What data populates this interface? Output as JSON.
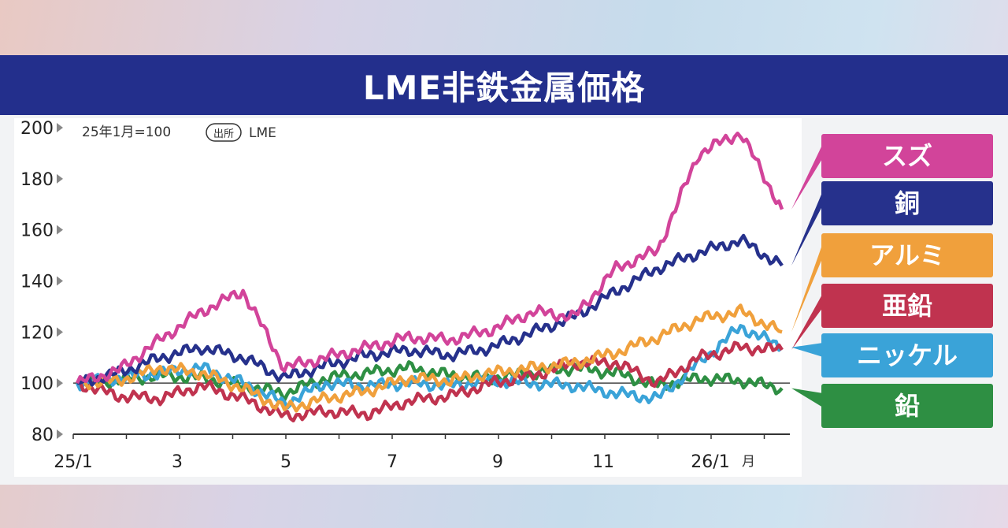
{
  "chart_data": {
    "type": "line",
    "title": "LME非鉄金属価格",
    "base_note": "25年1月=100",
    "source_badge": "出所",
    "source": "LME",
    "ylim": [
      80,
      200
    ],
    "y_ticks": [
      "200",
      "180",
      "160",
      "140",
      "120",
      "100",
      "80"
    ],
    "x_ticks": [
      "25/1",
      "3",
      "5",
      "7",
      "9",
      "11",
      "26/1"
    ],
    "x_tick_suffix": "月",
    "reference_line": 100,
    "x": [
      "2025-01",
      "2025-02",
      "2025-03",
      "2025-03b",
      "2025-04",
      "2025-04b",
      "2025-05",
      "2025-06",
      "2025-07",
      "2025-08",
      "2025-09",
      "2025-10",
      "2025-11",
      "2025-12",
      "2025-12b",
      "2026-01",
      "2026-01b",
      "2026-02"
    ],
    "series": [
      {
        "name": "スズ",
        "color": "#d2449a",
        "values": [
          100,
          105,
          117,
          128,
          136,
          106,
          110,
          114,
          118,
          117,
          121,
          128,
          126,
          145,
          152,
          190,
          198,
          168
        ]
      },
      {
        "name": "銅",
        "color": "#26318c",
        "values": [
          100,
          104,
          110,
          114,
          110,
          102,
          107,
          111,
          113,
          111,
          114,
          120,
          126,
          136,
          145,
          151,
          156,
          146
        ]
      },
      {
        "name": "アルミ",
        "color": "#f0a03c",
        "values": [
          100,
          101,
          106,
          104,
          98,
          90,
          94,
          97,
          102,
          101,
          104,
          106,
          108,
          112,
          118,
          125,
          128,
          120
        ]
      },
      {
        "name": "亜鉛",
        "color": "#c0334f",
        "values": [
          100,
          95,
          94,
          99,
          94,
          87,
          89,
          88,
          93,
          95,
          100,
          103,
          108,
          108,
          100,
          110,
          114,
          113
        ]
      },
      {
        "name": "ニッケル",
        "color": "#3aa3d8",
        "values": [
          100,
          102,
          104,
          106,
          100,
          92,
          100,
          99,
          100,
          99,
          101,
          100,
          99,
          96,
          94,
          108,
          122,
          114
        ]
      },
      {
        "name": "鉛",
        "color": "#2e8f43",
        "values": [
          100,
          101,
          103,
          102,
          99,
          96,
          102,
          104,
          106,
          103,
          102,
          104,
          106,
          104,
          99,
          102,
          101,
          98
        ]
      }
    ]
  }
}
